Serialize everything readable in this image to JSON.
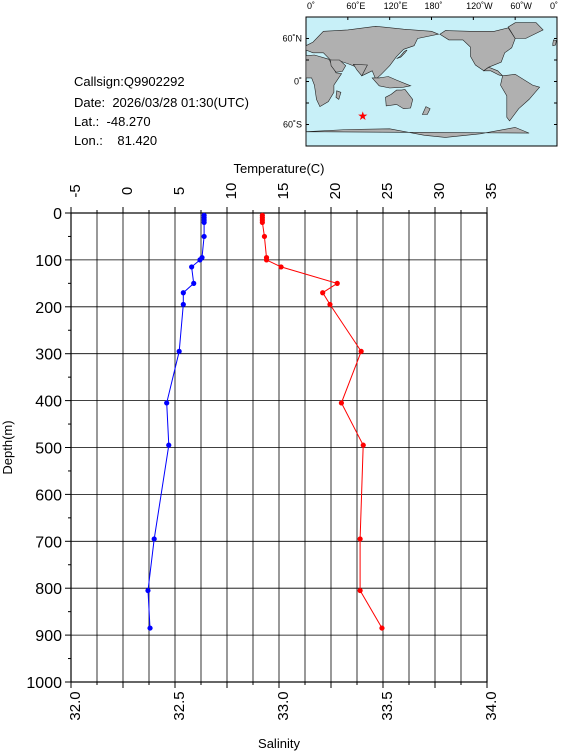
{
  "meta": {
    "callsign_label": "Callsign:",
    "callsign": "Q9902292",
    "date_label": "Date:",
    "date": "2026/03/28 01:30(UTC)",
    "lat_label": "Lat.:",
    "lat": "-48.270",
    "lon_label": "Lon.:",
    "lon": "81.420"
  },
  "map": {
    "top_ticks": [
      "0˚",
      "60˚E",
      "120˚E",
      "180˚",
      "120˚W",
      "60˚W",
      "0˚"
    ],
    "lat_ticks": [
      "60˚N",
      "0˚",
      "60˚S"
    ],
    "ocean_color": "#c8f0f8",
    "land_color": "#b0b0b0",
    "marker_color": "#ff0000",
    "station": {
      "lon": 81.42,
      "lat": -48.27
    }
  },
  "chart_data": {
    "type": "line",
    "top_axis_label": "Temperature(C)",
    "bottom_axis_label": "Salinity",
    "y_axis_label": "Depth(m)",
    "temperature_ticks": [
      "-5",
      "0",
      "5",
      "10",
      "15",
      "20",
      "25",
      "30",
      "35"
    ],
    "salinity_ticks": [
      "32.0",
      "32.5",
      "33.0",
      "33.5",
      "34.0"
    ],
    "depth_ticks": [
      "0",
      "100",
      "200",
      "300",
      "400",
      "500",
      "600",
      "700",
      "800",
      "900",
      "1000"
    ],
    "temperature_range": [
      -5,
      35
    ],
    "salinity_range": [
      32.0,
      34.0
    ],
    "depth_range": [
      0,
      1000
    ],
    "grid": true,
    "series": [
      {
        "quantity": "temperature",
        "color": "#ff0000",
        "depth": [
          5,
          10,
          15,
          20,
          50,
          95,
          100,
          115,
          150,
          170,
          195,
          295,
          405,
          495,
          695,
          805,
          885
        ],
        "values": [
          13.4,
          13.4,
          13.4,
          13.4,
          13.6,
          13.8,
          13.8,
          15.2,
          20.6,
          19.2,
          19.9,
          22.9,
          21.0,
          23.1,
          22.8,
          22.8,
          24.9
        ]
      },
      {
        "quantity": "salinity",
        "color": "#0000ff",
        "depth": [
          5,
          10,
          15,
          20,
          50,
          95,
          100,
          115,
          150,
          170,
          195,
          295,
          405,
          495,
          695,
          805,
          885
        ],
        "values": [
          32.64,
          32.64,
          32.64,
          32.64,
          32.64,
          32.63,
          32.62,
          32.58,
          32.59,
          32.54,
          32.54,
          32.52,
          32.46,
          32.47,
          32.4,
          32.37,
          32.38
        ]
      }
    ]
  }
}
